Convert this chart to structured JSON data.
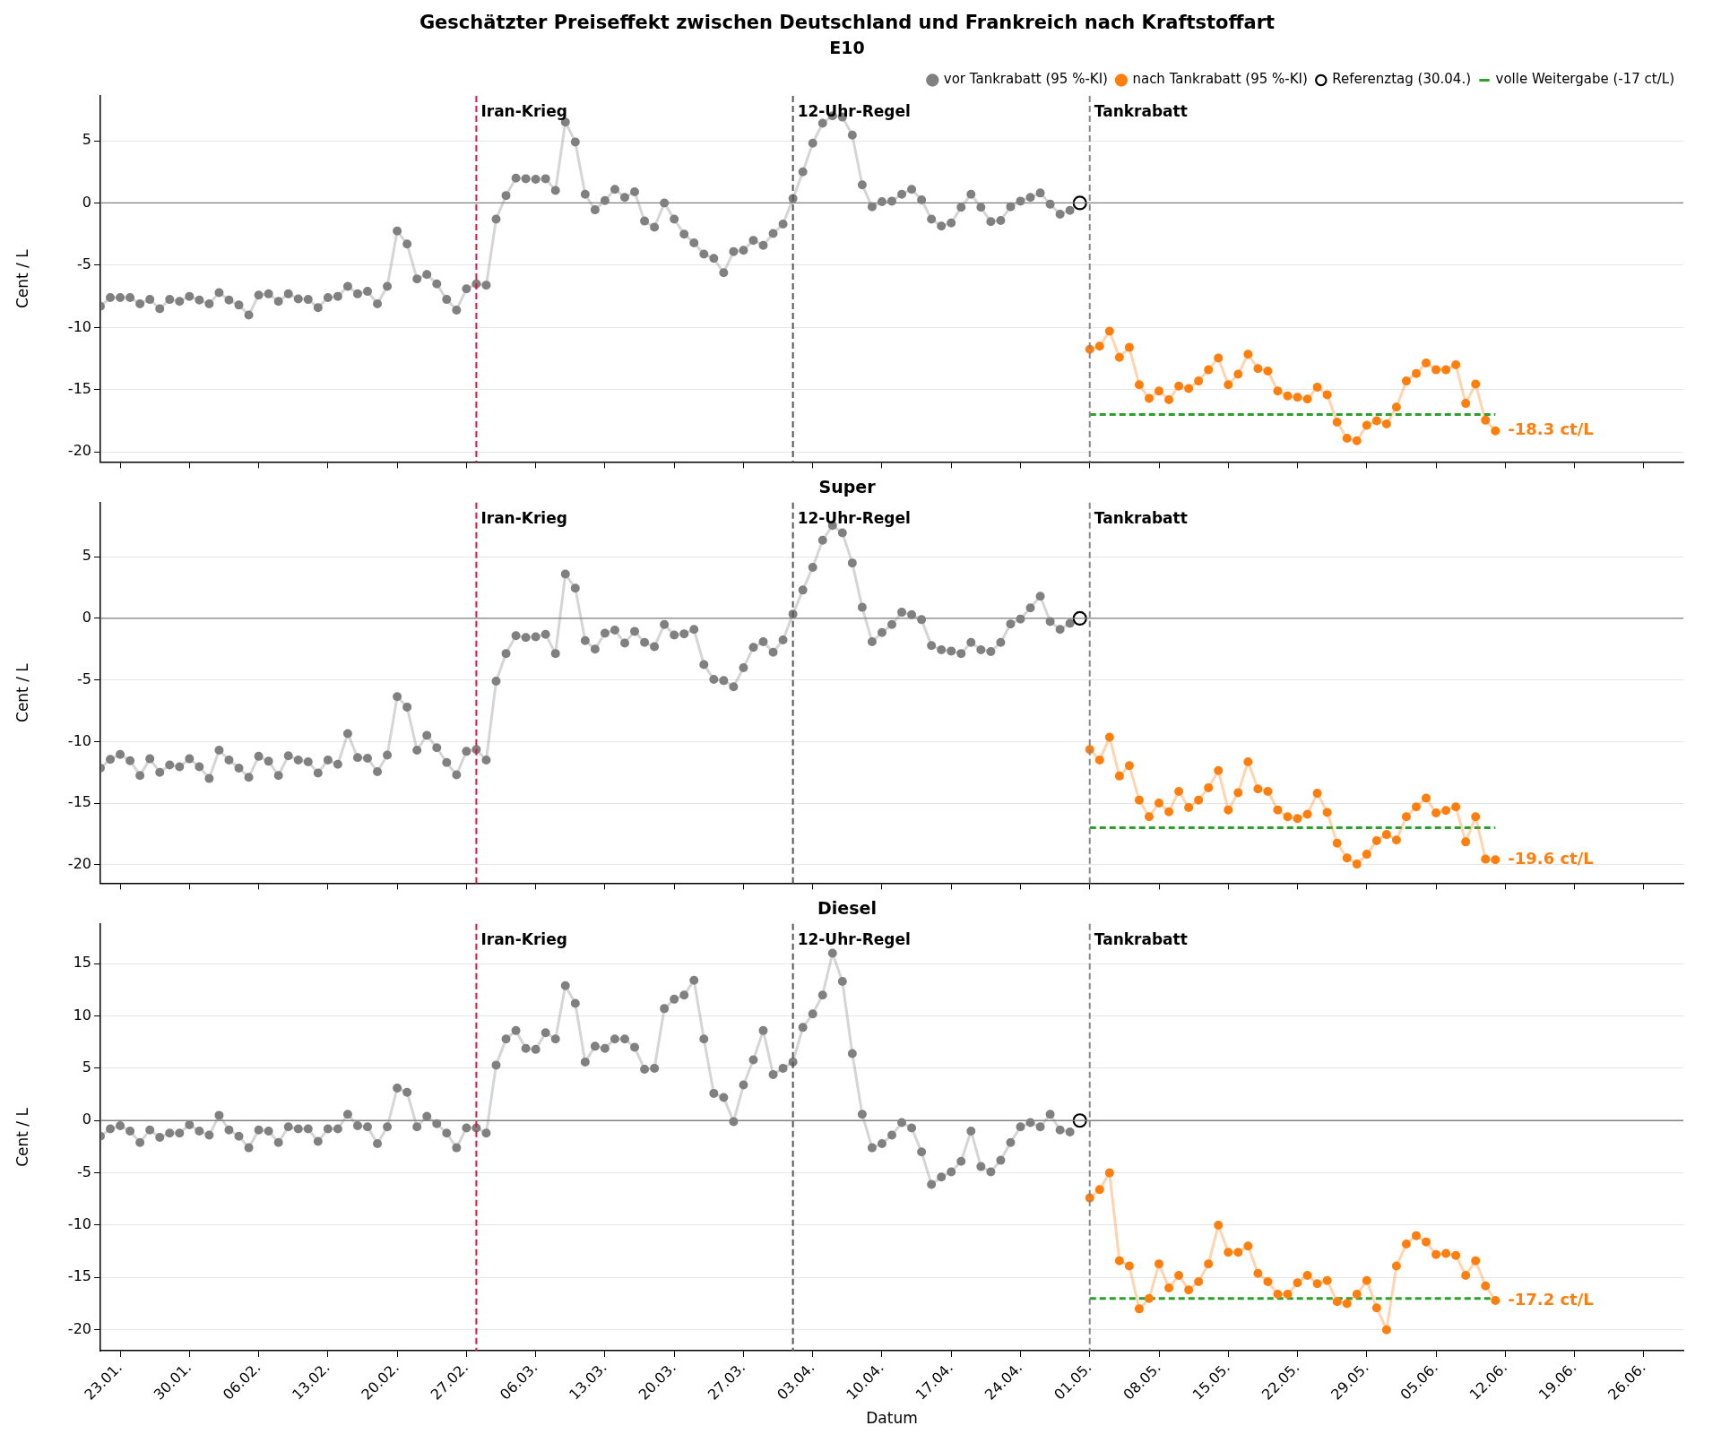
{
  "chart_data": [
    {
      "type": "line",
      "title": "Geschätzter Preiseffekt zwischen Deutschland und Frankreich nach Kraftstoffart",
      "subtitle": "E10",
      "ylabel": "Cent / L",
      "xlim": [
        "--01-21",
        "--06-30"
      ],
      "ylim": [
        -20.8,
        8.6
      ],
      "yticks": [
        -20,
        -15,
        -10,
        -5,
        0,
        5
      ],
      "xticks": [
        {
          "value": "--01-23",
          "label": "23.01."
        },
        {
          "value": "--01-30",
          "label": "30.01."
        },
        {
          "value": "--02-06",
          "label": "06.02."
        },
        {
          "value": "--02-13",
          "label": "13.02."
        },
        {
          "value": "--02-20",
          "label": "20.02."
        },
        {
          "value": "--02-27",
          "label": "27.02."
        },
        {
          "value": "--03-06",
          "label": "06.03."
        },
        {
          "value": "--03-13",
          "label": "13.03."
        },
        {
          "value": "--03-20",
          "label": "20.03."
        },
        {
          "value": "--03-27",
          "label": "27.03."
        },
        {
          "value": "--04-03",
          "label": "03.04."
        },
        {
          "value": "--04-10",
          "label": "10.04."
        },
        {
          "value": "--04-17",
          "label": "17.04."
        },
        {
          "value": "--04-24",
          "label": "24.04."
        },
        {
          "value": "--05-01",
          "label": "01.05."
        },
        {
          "value": "--05-08",
          "label": "08.05."
        },
        {
          "value": "--05-15",
          "label": "15.05."
        },
        {
          "value": "--05-22",
          "label": "22.05."
        },
        {
          "value": "--05-29",
          "label": "29.05."
        },
        {
          "value": "--06-05",
          "label": "05.06."
        },
        {
          "value": "--06-12",
          "label": "12.06."
        },
        {
          "value": "--06-19",
          "label": "19.06."
        },
        {
          "value": "--06-26",
          "label": "26.06."
        }
      ],
      "tick_labels": "y",
      "grid": "y",
      "legend": "top right",
      "marker": "circle",
      "ref_lines": [
        {
          "axis": "x",
          "value": "--02-28",
          "label": "Iran-Krieg",
          "color": "#dc143c",
          "line_style": "dashed"
        },
        {
          "axis": "x",
          "value": "--04-01",
          "label": "12-Uhr-Regel",
          "color": "#555555",
          "line_style": "dashed"
        },
        {
          "axis": "x",
          "value": "--05-01",
          "label": "Tankrabatt",
          "color": "#888888",
          "line_style": "dashed"
        },
        {
          "axis": "y",
          "value": 0,
          "color": "#808080",
          "line_style": "solid"
        }
      ],
      "annotations": [
        {
          "text": "-18.3 ct/L",
          "x": "--06-11",
          "y": -18.3
        }
      ],
      "series": [
        {
          "name": "vor Tankrabatt (95 %-KI)",
          "color": "#808080",
          "x": [
            "--01-21",
            "--01-22",
            "--01-23",
            "--01-24",
            "--01-25",
            "--01-26",
            "--01-27",
            "--01-28",
            "--01-29",
            "--01-30",
            "--01-31",
            "--02-01",
            "--02-02",
            "--02-03",
            "--02-04",
            "--02-05",
            "--02-06",
            "--02-07",
            "--02-08",
            "--02-09",
            "--02-10",
            "--02-11",
            "--02-12",
            "--02-13",
            "--02-14",
            "--02-15",
            "--02-16",
            "--02-17",
            "--02-18",
            "--02-19",
            "--02-20",
            "--02-21",
            "--02-22",
            "--02-23",
            "--02-24",
            "--02-25",
            "--02-26",
            "--02-27",
            "--02-28",
            "--03-01",
            "--03-02",
            "--03-03",
            "--03-04",
            "--03-05",
            "--03-06",
            "--03-07",
            "--03-08",
            "--03-09",
            "--03-10",
            "--03-11",
            "--03-12",
            "--03-13",
            "--03-14",
            "--03-15",
            "--03-16",
            "--03-17",
            "--03-18",
            "--03-19",
            "--03-20",
            "--03-21",
            "--03-22",
            "--03-23",
            "--03-24",
            "--03-25",
            "--03-26",
            "--03-27",
            "--03-28",
            "--03-29",
            "--03-30",
            "--03-31",
            "--04-01",
            "--04-02",
            "--04-03",
            "--04-04",
            "--04-05",
            "--04-06",
            "--04-07",
            "--04-08",
            "--04-09",
            "--04-10",
            "--04-11",
            "--04-12",
            "--04-13",
            "--04-14",
            "--04-15",
            "--04-16",
            "--04-17",
            "--04-18",
            "--04-19",
            "--04-20",
            "--04-21",
            "--04-22",
            "--04-23",
            "--04-24",
            "--04-25",
            "--04-26",
            "--04-27",
            "--04-28",
            "--04-29"
          ],
          "values": [
            -8.3,
            -7.6,
            -7.6,
            -7.6,
            -8.1,
            -7.75,
            -8.5,
            -7.75,
            -7.9,
            -7.5,
            -7.8,
            -8.1,
            -7.2,
            -7.8,
            -8.2,
            -9.0,
            -7.4,
            -7.3,
            -7.9,
            -7.3,
            -7.7,
            -7.75,
            -8.4,
            -7.6,
            -7.5,
            -6.7,
            -7.3,
            -7.1,
            -8.1,
            -6.7,
            -2.25,
            -3.3,
            -6.1,
            -5.75,
            -6.5,
            -7.75,
            -8.6,
            -6.9,
            -6.5,
            -6.6,
            -1.3,
            0.6,
            2.0,
            1.95,
            1.9,
            1.95,
            1.0,
            6.5,
            4.9,
            0.7,
            -0.55,
            0.2,
            1.1,
            0.45,
            0.9,
            -1.45,
            -1.95,
            0,
            -1.3,
            -2.5,
            -3.2,
            -4.1,
            -4.45,
            -5.6,
            -3.9,
            -3.8,
            -3.0,
            -3.4,
            -2.45,
            -1.7,
            0.35,
            2.5,
            4.8,
            6.4,
            7.0,
            6.9,
            5.45,
            1.45,
            -0.3,
            0.1,
            0.15,
            0.7,
            1.1,
            0.25,
            -1.3,
            -1.85,
            -1.6,
            -0.35,
            0.7,
            -0.35,
            -1.5,
            -1.4,
            -0.3,
            0.15,
            0.45,
            0.8,
            -0.1,
            -0.9,
            -0.6
          ]
        },
        {
          "name": "nach Tankrabatt (95 %-KI)",
          "color": "#ff7f0e",
          "x": [
            "--05-01",
            "--05-02",
            "--05-03",
            "--05-04",
            "--05-05",
            "--05-06",
            "--05-07",
            "--05-08",
            "--05-09",
            "--05-10",
            "--05-11",
            "--05-12",
            "--05-13",
            "--05-14",
            "--05-15",
            "--05-16",
            "--05-17",
            "--05-18",
            "--05-19",
            "--05-20",
            "--05-21",
            "--05-22",
            "--05-23",
            "--05-24",
            "--05-25",
            "--05-26",
            "--05-27",
            "--05-28",
            "--05-29",
            "--05-30",
            "--05-31",
            "--06-01",
            "--06-02",
            "--06-03",
            "--06-04",
            "--06-05",
            "--06-06",
            "--06-07",
            "--06-08",
            "--06-09",
            "--06-10",
            "--06-11"
          ],
          "values": [
            -11.75,
            -11.5,
            -10.3,
            -12.4,
            -11.6,
            -14.6,
            -15.7,
            -15.1,
            -15.8,
            -14.7,
            -14.9,
            -14.3,
            -13.4,
            -12.45,
            -14.6,
            -13.75,
            -12.15,
            -13.3,
            -13.5,
            -15.1,
            -15.5,
            -15.6,
            -15.75,
            -14.8,
            -15.4,
            -17.6,
            -18.9,
            -19.1,
            -17.85,
            -17.5,
            -17.75,
            -16.4,
            -14.3,
            -13.7,
            -12.85,
            -13.4,
            -13.4,
            -13.0,
            -16.1,
            -14.55,
            -17.45,
            -18.3
          ]
        },
        {
          "name": "Referenztag (30.04.)",
          "type": "scatter",
          "color": "#000000",
          "x": [
            "--04-30"
          ],
          "values": [
            0
          ]
        },
        {
          "name": "volle Weitergabe (-17 ct/L)",
          "color": "#2ca02c",
          "marker": "none",
          "line_style": "dashed",
          "x": [
            "--05-01",
            "--06-11"
          ],
          "values": [
            -17,
            -17
          ]
        }
      ]
    },
    {
      "type": "line",
      "title": "Super",
      "ylabel": "Cent / L",
      "xlim": [
        "--01-21",
        "--06-30"
      ],
      "ylim": [
        -21.5,
        9.4
      ],
      "yticks": [
        -20,
        -15,
        -10,
        -5,
        0,
        5
      ],
      "xticks": [
        {
          "value": "--01-23",
          "label": "23.01."
        },
        {
          "value": "--01-30",
          "label": "30.01."
        },
        {
          "value": "--02-06",
          "label": "06.02."
        },
        {
          "value": "--02-13",
          "label": "13.02."
        },
        {
          "value": "--02-20",
          "label": "20.02."
        },
        {
          "value": "--02-27",
          "label": "27.02."
        },
        {
          "value": "--03-06",
          "label": "06.03."
        },
        {
          "value": "--03-13",
          "label": "13.03."
        },
        {
          "value": "--03-20",
          "label": "20.03."
        },
        {
          "value": "--03-27",
          "label": "27.03."
        },
        {
          "value": "--04-03",
          "label": "03.04."
        },
        {
          "value": "--04-10",
          "label": "10.04."
        },
        {
          "value": "--04-17",
          "label": "17.04."
        },
        {
          "value": "--04-24",
          "label": "24.04."
        },
        {
          "value": "--05-01",
          "label": "01.05."
        },
        {
          "value": "--05-08",
          "label": "08.05."
        },
        {
          "value": "--05-15",
          "label": "15.05."
        },
        {
          "value": "--05-22",
          "label": "22.05."
        },
        {
          "value": "--05-29",
          "label": "29.05."
        },
        {
          "value": "--06-05",
          "label": "05.06."
        },
        {
          "value": "--06-12",
          "label": "12.06."
        },
        {
          "value": "--06-19",
          "label": "19.06."
        },
        {
          "value": "--06-26",
          "label": "26.06."
        }
      ],
      "tick_labels": "y",
      "grid": "y",
      "marker": "circle",
      "ref_lines": [
        {
          "axis": "x",
          "value": "--02-28",
          "label": "Iran-Krieg",
          "color": "#dc143c",
          "line_style": "dashed"
        },
        {
          "axis": "x",
          "value": "--04-01",
          "label": "12-Uhr-Regel",
          "color": "#555555",
          "line_style": "dashed"
        },
        {
          "axis": "x",
          "value": "--05-01",
          "label": "Tankrabatt",
          "color": "#888888",
          "line_style": "dashed"
        },
        {
          "axis": "y",
          "value": 0,
          "color": "#808080",
          "line_style": "solid"
        }
      ],
      "annotations": [
        {
          "text": "-19.6 ct/L",
          "x": "--06-11",
          "y": -19.6
        }
      ],
      "series": [
        {
          "color": "#808080",
          "x": [
            "--01-21",
            "--01-22",
            "--01-23",
            "--01-24",
            "--01-25",
            "--01-26",
            "--01-27",
            "--01-28",
            "--01-29",
            "--01-30",
            "--01-31",
            "--02-01",
            "--02-02",
            "--02-03",
            "--02-04",
            "--02-05",
            "--02-06",
            "--02-07",
            "--02-08",
            "--02-09",
            "--02-10",
            "--02-11",
            "--02-12",
            "--02-13",
            "--02-14",
            "--02-15",
            "--02-16",
            "--02-17",
            "--02-18",
            "--02-19",
            "--02-20",
            "--02-21",
            "--02-22",
            "--02-23",
            "--02-24",
            "--02-25",
            "--02-26",
            "--02-27",
            "--02-28",
            "--03-01",
            "--03-02",
            "--03-03",
            "--03-04",
            "--03-05",
            "--03-06",
            "--03-07",
            "--03-08",
            "--03-09",
            "--03-10",
            "--03-11",
            "--03-12",
            "--03-13",
            "--03-14",
            "--03-15",
            "--03-16",
            "--03-17",
            "--03-18",
            "--03-19",
            "--03-20",
            "--03-21",
            "--03-22",
            "--03-23",
            "--03-24",
            "--03-25",
            "--03-26",
            "--03-27",
            "--03-28",
            "--03-29",
            "--03-30",
            "--03-31",
            "--04-01",
            "--04-02",
            "--04-03",
            "--04-04",
            "--04-05",
            "--04-06",
            "--04-07",
            "--04-08",
            "--04-09",
            "--04-10",
            "--04-11",
            "--04-12",
            "--04-13",
            "--04-14",
            "--04-15",
            "--04-16",
            "--04-17",
            "--04-18",
            "--04-19",
            "--04-20",
            "--04-21",
            "--04-22",
            "--04-23",
            "--04-24",
            "--04-25",
            "--04-26",
            "--04-27",
            "--04-28",
            "--04-29"
          ],
          "values": [
            -12.15,
            -11.45,
            -11.05,
            -11.55,
            -12.75,
            -11.4,
            -12.5,
            -11.9,
            -12.05,
            -11.4,
            -12.05,
            -13.0,
            -10.7,
            -11.5,
            -12.15,
            -12.9,
            -11.2,
            -11.6,
            -12.75,
            -11.15,
            -11.5,
            -11.65,
            -12.55,
            -11.5,
            -11.85,
            -9.35,
            -11.3,
            -11.35,
            -12.45,
            -11.1,
            -6.35,
            -7.2,
            -10.7,
            -9.5,
            -10.5,
            -11.7,
            -12.7,
            -10.8,
            -10.65,
            -11.5,
            -5.1,
            -2.85,
            -1.4,
            -1.55,
            -1.5,
            -1.3,
            -2.85,
            3.6,
            2.45,
            -1.8,
            -2.5,
            -1.2,
            -0.95,
            -2.0,
            -1.05,
            -1.95,
            -2.3,
            -0.5,
            -1.35,
            -1.25,
            -0.9,
            -3.75,
            -4.95,
            -5.05,
            -5.55,
            -4.0,
            -2.35,
            -1.9,
            -2.75,
            -1.75,
            0.35,
            2.3,
            4.15,
            6.35,
            7.55,
            6.95,
            4.5,
            0.9,
            -1.9,
            -1.15,
            -0.5,
            0.5,
            0.3,
            -0.1,
            -2.2,
            -2.55,
            -2.65,
            -2.85,
            -1.95,
            -2.55,
            -2.7,
            -1.95,
            -0.45,
            -0.05,
            0.85,
            1.8,
            -0.25,
            -0.9,
            -0.4
          ]
        },
        {
          "color": "#ff7f0e",
          "x": [
            "--05-01",
            "--05-02",
            "--05-03",
            "--05-04",
            "--05-05",
            "--05-06",
            "--05-07",
            "--05-08",
            "--05-09",
            "--05-10",
            "--05-11",
            "--05-12",
            "--05-13",
            "--05-14",
            "--05-15",
            "--05-16",
            "--05-17",
            "--05-18",
            "--05-19",
            "--05-20",
            "--05-21",
            "--05-22",
            "--05-23",
            "--05-24",
            "--05-25",
            "--05-26",
            "--05-27",
            "--05-28",
            "--05-29",
            "--05-30",
            "--05-31",
            "--06-01",
            "--06-02",
            "--06-03",
            "--06-04",
            "--06-05",
            "--06-06",
            "--06-07",
            "--06-08",
            "--06-09",
            "--06-10",
            "--06-11"
          ],
          "values": [
            -10.65,
            -11.5,
            -9.65,
            -12.8,
            -11.95,
            -14.75,
            -16.1,
            -15.0,
            -15.7,
            -14.05,
            -15.35,
            -14.75,
            -13.75,
            -12.35,
            -15.55,
            -14.15,
            -11.65,
            -13.85,
            -14.05,
            -15.55,
            -16.1,
            -16.25,
            -15.9,
            -14.2,
            -15.75,
            -18.25,
            -19.45,
            -19.95,
            -19.15,
            -18.05,
            -17.55,
            -18.0,
            -16.1,
            -15.3,
            -14.6,
            -15.8,
            -15.6,
            -15.3,
            -18.15,
            -16.1,
            -19.55,
            -19.6
          ]
        },
        {
          "type": "scatter",
          "color": "#000000",
          "x": [
            "--04-30"
          ],
          "values": [
            0
          ]
        },
        {
          "color": "#2ca02c",
          "marker": "none",
          "line_style": "dashed",
          "x": [
            "--05-01",
            "--06-11"
          ],
          "values": [
            -17,
            -17
          ]
        }
      ]
    },
    {
      "type": "line",
      "title": "Diesel",
      "xlabel": "Datum",
      "ylabel": "Cent / L",
      "xlim": [
        "--01-21",
        "--06-30"
      ],
      "ylim": [
        -22,
        18.8
      ],
      "yticks": [
        -20,
        -15,
        -10,
        -5,
        0,
        5,
        10,
        15
      ],
      "xticks": [
        {
          "value": "--01-23",
          "label": "23.01."
        },
        {
          "value": "--01-30",
          "label": "30.01."
        },
        {
          "value": "--02-06",
          "label": "06.02."
        },
        {
          "value": "--02-13",
          "label": "13.02."
        },
        {
          "value": "--02-20",
          "label": "20.02."
        },
        {
          "value": "--02-27",
          "label": "27.02."
        },
        {
          "value": "--03-06",
          "label": "06.03."
        },
        {
          "value": "--03-13",
          "label": "13.03."
        },
        {
          "value": "--03-20",
          "label": "20.03."
        },
        {
          "value": "--03-27",
          "label": "27.03."
        },
        {
          "value": "--04-03",
          "label": "03.04."
        },
        {
          "value": "--04-10",
          "label": "10.04."
        },
        {
          "value": "--04-17",
          "label": "17.04."
        },
        {
          "value": "--04-24",
          "label": "24.04."
        },
        {
          "value": "--05-01",
          "label": "01.05."
        },
        {
          "value": "--05-08",
          "label": "08.05."
        },
        {
          "value": "--05-15",
          "label": "15.05."
        },
        {
          "value": "--05-22",
          "label": "22.05."
        },
        {
          "value": "--05-29",
          "label": "29.05."
        },
        {
          "value": "--06-05",
          "label": "05.06."
        },
        {
          "value": "--06-12",
          "label": "12.06."
        },
        {
          "value": "--06-19",
          "label": "19.06."
        },
        {
          "value": "--06-26",
          "label": "26.06."
        }
      ],
      "grid": "y",
      "marker": "circle",
      "ref_lines": [
        {
          "axis": "x",
          "value": "--02-28",
          "label": "Iran-Krieg",
          "color": "#dc143c",
          "line_style": "dashed"
        },
        {
          "axis": "x",
          "value": "--04-01",
          "label": "12-Uhr-Regel",
          "color": "#555555",
          "line_style": "dashed"
        },
        {
          "axis": "x",
          "value": "--05-01",
          "label": "Tankrabatt",
          "color": "#888888",
          "line_style": "dashed"
        },
        {
          "axis": "y",
          "value": 0,
          "color": "#808080",
          "line_style": "solid"
        }
      ],
      "annotations": [
        {
          "text": "-17.2 ct/L",
          "x": "--06-11",
          "y": -17.2
        }
      ],
      "series": [
        {
          "color": "#808080",
          "x": [
            "--01-21",
            "--01-22",
            "--01-23",
            "--01-24",
            "--01-25",
            "--01-26",
            "--01-27",
            "--01-28",
            "--01-29",
            "--01-30",
            "--01-31",
            "--02-01",
            "--02-02",
            "--02-03",
            "--02-04",
            "--02-05",
            "--02-06",
            "--02-07",
            "--02-08",
            "--02-09",
            "--02-10",
            "--02-11",
            "--02-12",
            "--02-13",
            "--02-14",
            "--02-15",
            "--02-16",
            "--02-17",
            "--02-18",
            "--02-19",
            "--02-20",
            "--02-21",
            "--02-22",
            "--02-23",
            "--02-24",
            "--02-25",
            "--02-26",
            "--02-27",
            "--02-28",
            "--03-01",
            "--03-02",
            "--03-03",
            "--03-04",
            "--03-05",
            "--03-06",
            "--03-07",
            "--03-08",
            "--03-09",
            "--03-10",
            "--03-11",
            "--03-12",
            "--03-13",
            "--03-14",
            "--03-15",
            "--03-16",
            "--03-17",
            "--03-18",
            "--03-19",
            "--03-20",
            "--03-21",
            "--03-22",
            "--03-23",
            "--03-24",
            "--03-25",
            "--03-26",
            "--03-27",
            "--03-28",
            "--03-29",
            "--03-30",
            "--03-31",
            "--04-01",
            "--04-02",
            "--04-03",
            "--04-04",
            "--04-05",
            "--04-06",
            "--04-07",
            "--04-08",
            "--04-09",
            "--04-10",
            "--04-11",
            "--04-12",
            "--04-13",
            "--04-14",
            "--04-15",
            "--04-16",
            "--04-17",
            "--04-18",
            "--04-19",
            "--04-20",
            "--04-21",
            "--04-22",
            "--04-23",
            "--04-24",
            "--04-25",
            "--04-26",
            "--04-27",
            "--04-28",
            "--04-29"
          ],
          "values": [
            -1.5,
            -0.8,
            -0.5,
            -1.0,
            -2.1,
            -0.9,
            -1.6,
            -1.2,
            -1.2,
            -0.4,
            -1.0,
            -1.4,
            0.5,
            -0.9,
            -1.5,
            -2.6,
            -0.9,
            -1.0,
            -2.1,
            -0.6,
            -0.8,
            -0.8,
            -2.0,
            -0.8,
            -0.8,
            0.6,
            -0.5,
            -0.6,
            -2.2,
            -0.6,
            3.1,
            2.7,
            -0.6,
            0.4,
            -0.3,
            -1.2,
            -2.6,
            -0.7,
            -0.7,
            -1.2,
            5.3,
            7.8,
            8.6,
            6.9,
            6.8,
            8.4,
            7.8,
            12.9,
            11.2,
            5.6,
            7.1,
            6.9,
            7.8,
            7.8,
            7.0,
            4.9,
            5.0,
            10.7,
            11.6,
            12.0,
            13.4,
            7.8,
            2.6,
            2.2,
            -0.1,
            3.4,
            5.8,
            8.6,
            4.4,
            5.0,
            5.6,
            8.9,
            10.2,
            12.0,
            16.0,
            13.3,
            6.4,
            0.6,
            -2.6,
            -2.2,
            -1.4,
            -0.2,
            -0.7,
            -3.0,
            -6.1,
            -5.4,
            -4.9,
            -3.9,
            -1.0,
            -4.4,
            -4.9,
            -3.8,
            -2.1,
            -0.6,
            -0.2,
            -0.6,
            0.6,
            -0.9,
            -1.1
          ]
        },
        {
          "color": "#ff7f0e",
          "x": [
            "--05-01",
            "--05-02",
            "--05-03",
            "--05-04",
            "--05-05",
            "--05-06",
            "--05-07",
            "--05-08",
            "--05-09",
            "--05-10",
            "--05-11",
            "--05-12",
            "--05-13",
            "--05-14",
            "--05-15",
            "--05-16",
            "--05-17",
            "--05-18",
            "--05-19",
            "--05-20",
            "--05-21",
            "--05-22",
            "--05-23",
            "--05-24",
            "--05-25",
            "--05-26",
            "--05-27",
            "--05-28",
            "--05-29",
            "--05-30",
            "--05-31",
            "--06-01",
            "--06-02",
            "--06-03",
            "--06-04",
            "--06-05",
            "--06-06",
            "--06-07",
            "--06-08",
            "--06-09",
            "--06-10",
            "--06-11"
          ],
          "values": [
            -7.4,
            -6.6,
            -5.0,
            -13.4,
            -13.9,
            -18.0,
            -17.0,
            -13.7,
            -16.0,
            -14.8,
            -16.2,
            -15.4,
            -13.7,
            -10.0,
            -12.6,
            -12.6,
            -12.0,
            -14.6,
            -15.4,
            -16.6,
            -16.6,
            -15.5,
            -14.8,
            -15.6,
            -15.3,
            -17.3,
            -17.5,
            -16.6,
            -15.3,
            -17.9,
            -20.0,
            -13.9,
            -11.8,
            -11.0,
            -11.6,
            -12.8,
            -12.7,
            -12.9,
            -14.8,
            -13.4,
            -15.8,
            -17.2
          ]
        },
        {
          "type": "scatter",
          "color": "#000000",
          "x": [
            "--04-30"
          ],
          "values": [
            0
          ]
        },
        {
          "color": "#2ca02c",
          "marker": "none",
          "line_style": "dashed",
          "x": [
            "--05-01",
            "--06-11"
          ],
          "values": [
            -17,
            -17
          ]
        }
      ]
    }
  ]
}
